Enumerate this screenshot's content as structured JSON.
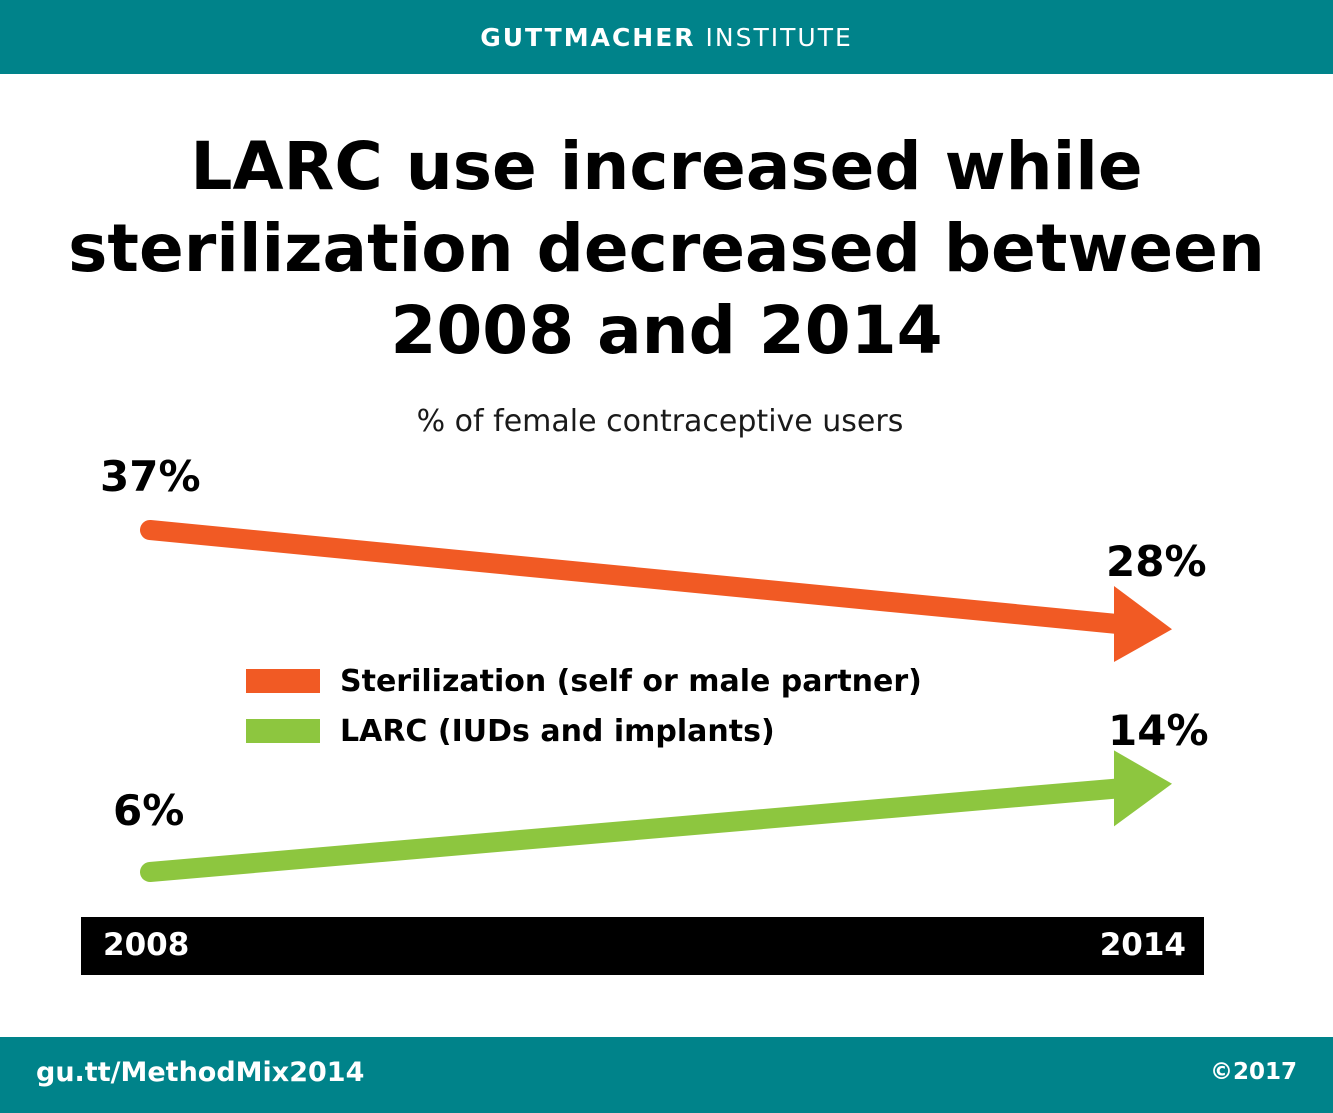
{
  "header": {
    "brand": "GUTTMACHER",
    "sub": "INSTITUTE"
  },
  "chart_data": {
    "type": "line",
    "title": "LARC use increased while sterilization decreased between 2008 and 2014",
    "subtitle": "% of female contraceptive users",
    "x": [
      "2008",
      "2014"
    ],
    "ylim": [
      0,
      40
    ],
    "series": [
      {
        "name": "Sterilization (self or male partner)",
        "values": [
          37,
          28
        ],
        "labels": [
          "37%",
          "28%"
        ],
        "color": "#f15a24"
      },
      {
        "name": "LARC (IUDs and implants)",
        "values": [
          6,
          14
        ],
        "labels": [
          "6%",
          "14%"
        ],
        "color": "#8dc63f"
      }
    ],
    "legend_position": "center"
  },
  "footer": {
    "link": "gu.tt/MethodMix2014",
    "copyright": "©2017"
  }
}
